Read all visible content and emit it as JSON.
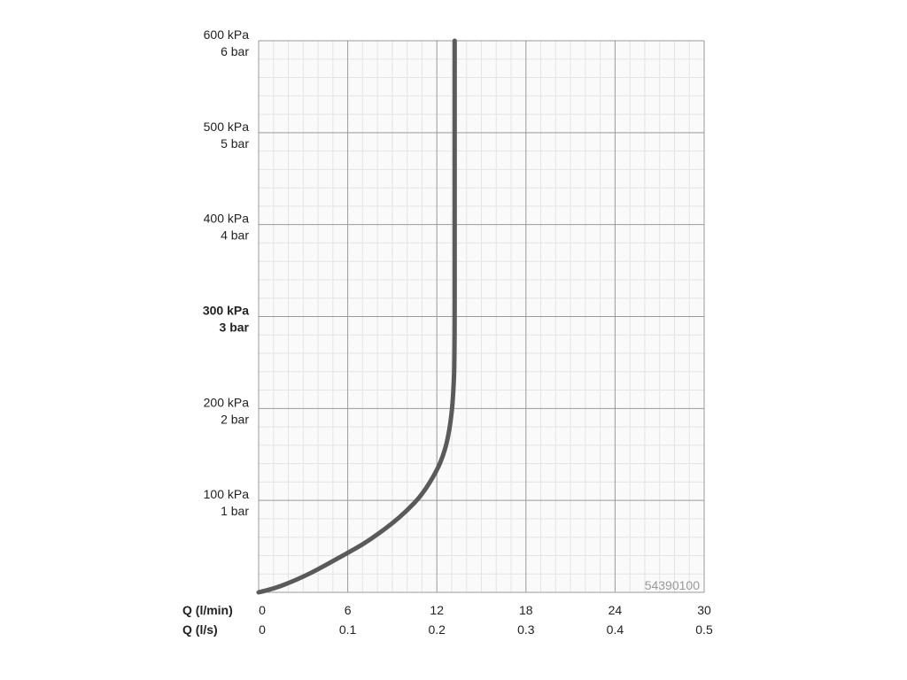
{
  "chart_data": {
    "type": "line",
    "y_ticks": [
      {
        "value": 0,
        "kpa": "",
        "bar": ""
      },
      {
        "value": 100,
        "kpa": "100 kPa",
        "bar": "1 bar"
      },
      {
        "value": 200,
        "kpa": "200 kPa",
        "bar": "2 bar"
      },
      {
        "value": 300,
        "kpa": "300 kPa",
        "bar": "3 bar",
        "bold": true
      },
      {
        "value": 400,
        "kpa": "400 kPa",
        "bar": "4 bar"
      },
      {
        "value": 500,
        "kpa": "500 kPa",
        "bar": "5 bar"
      },
      {
        "value": 600,
        "kpa": "600 kPa",
        "bar": "6 bar"
      }
    ],
    "x_axis_primary": {
      "label": "Q (l/min)",
      "ticks": [
        "0",
        "6",
        "12",
        "18",
        "24",
        "30"
      ],
      "values": [
        0,
        6,
        12,
        18,
        24,
        30
      ]
    },
    "x_axis_secondary": {
      "label": "Q (l/s)",
      "ticks": [
        "0",
        "0.1",
        "0.2",
        "0.3",
        "0.4",
        "0.5"
      ]
    },
    "xlim": [
      0,
      30
    ],
    "ylim": [
      0,
      600
    ],
    "grid": true,
    "series": [
      {
        "color": "#5a5a5a",
        "x": [
          0,
          1,
          2,
          3,
          4,
          5,
          6,
          7,
          8,
          9,
          10,
          11,
          12,
          12.5,
          12.8,
          13.0,
          13.1,
          13.2,
          13.2,
          13.2
        ],
        "y": [
          0,
          4,
          10,
          17,
          25,
          34,
          43,
          52,
          63,
          75,
          89,
          106,
          132,
          152,
          172,
          195,
          215,
          250,
          400,
          600
        ]
      }
    ],
    "annotation": "54390100"
  }
}
